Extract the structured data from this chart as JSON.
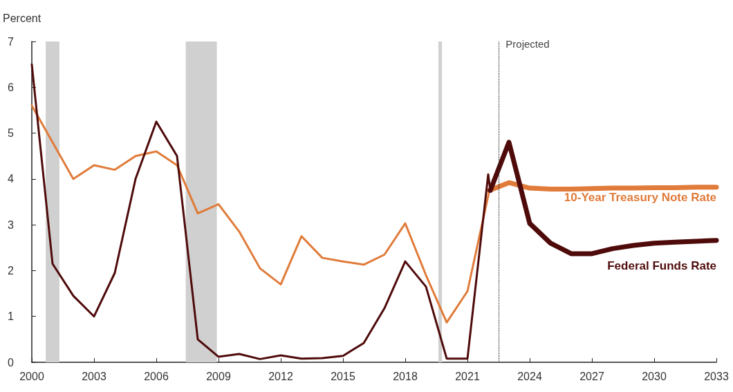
{
  "chart_data": {
    "type": "line",
    "ylabel": "Percent",
    "xlim": [
      2000,
      2033
    ],
    "xticks": [
      2000,
      2003,
      2006,
      2009,
      2012,
      2015,
      2018,
      2021,
      2024,
      2027,
      2030,
      2033
    ],
    "ylim": [
      0,
      7
    ],
    "yticks": [
      0,
      1,
      2,
      3,
      4,
      5,
      6,
      7
    ],
    "grid": false,
    "legend": false,
    "marker": "none",
    "line_style": "solid",
    "series": [
      {
        "name": "10-Year Treasury Note Rate",
        "color": "#e07b39",
        "x": [
          2000,
          2001,
          2002,
          2003,
          2004,
          2005,
          2006,
          2007,
          2008,
          2009,
          2010,
          2011,
          2012,
          2013,
          2014,
          2015,
          2016,
          2017,
          2018,
          2019,
          2020,
          2021,
          2022,
          2022.05,
          2023,
          2024,
          2025,
          2026,
          2027,
          2028,
          2029,
          2030,
          2031,
          2032,
          2033
        ],
        "values": [
          5.6,
          4.8,
          4.0,
          4.3,
          4.2,
          4.5,
          4.6,
          4.3,
          3.25,
          3.45,
          2.85,
          2.05,
          1.7,
          2.75,
          2.28,
          2.2,
          2.13,
          2.35,
          3.03,
          1.9,
          0.87,
          1.55,
          3.63,
          3.75,
          3.92,
          3.8,
          3.78,
          3.78,
          3.79,
          3.8,
          3.8,
          3.81,
          3.81,
          3.82,
          3.82
        ]
      },
      {
        "name": "Federal Funds Rate",
        "color": "#4f0a0a",
        "x": [
          2000,
          2001,
          2002,
          2003,
          2004,
          2005,
          2006,
          2007,
          2008,
          2009,
          2010,
          2011,
          2012,
          2013,
          2014,
          2015,
          2016,
          2017,
          2018,
          2019,
          2020,
          2021,
          2022,
          2022.1,
          2023,
          2024,
          2025,
          2026,
          2027,
          2028,
          2029,
          2030,
          2031,
          2032,
          2033
        ],
        "values": [
          6.5,
          2.15,
          1.45,
          1.0,
          1.95,
          4.0,
          5.25,
          4.5,
          0.5,
          0.12,
          0.18,
          0.07,
          0.15,
          0.08,
          0.09,
          0.14,
          0.42,
          1.18,
          2.2,
          1.65,
          0.08,
          0.08,
          4.1,
          3.75,
          4.8,
          3.03,
          2.6,
          2.37,
          2.37,
          2.48,
          2.55,
          2.6,
          2.62,
          2.64,
          2.66
        ]
      }
    ],
    "ref_lines": [
      {
        "axis": "x",
        "value": 2022.5,
        "label": "Projected",
        "color": "#222222",
        "line_style": "dotted"
      }
    ],
    "bands": [
      {
        "axis": "x",
        "from": 2000.67,
        "to": 2001.33,
        "color": "#d0d0d0"
      },
      {
        "axis": "x",
        "from": 2007.42,
        "to": 2008.92,
        "color": "#d0d0d0"
      },
      {
        "axis": "x",
        "from": 2019.6,
        "to": 2019.77,
        "color": "#d0d0d0"
      }
    ]
  }
}
